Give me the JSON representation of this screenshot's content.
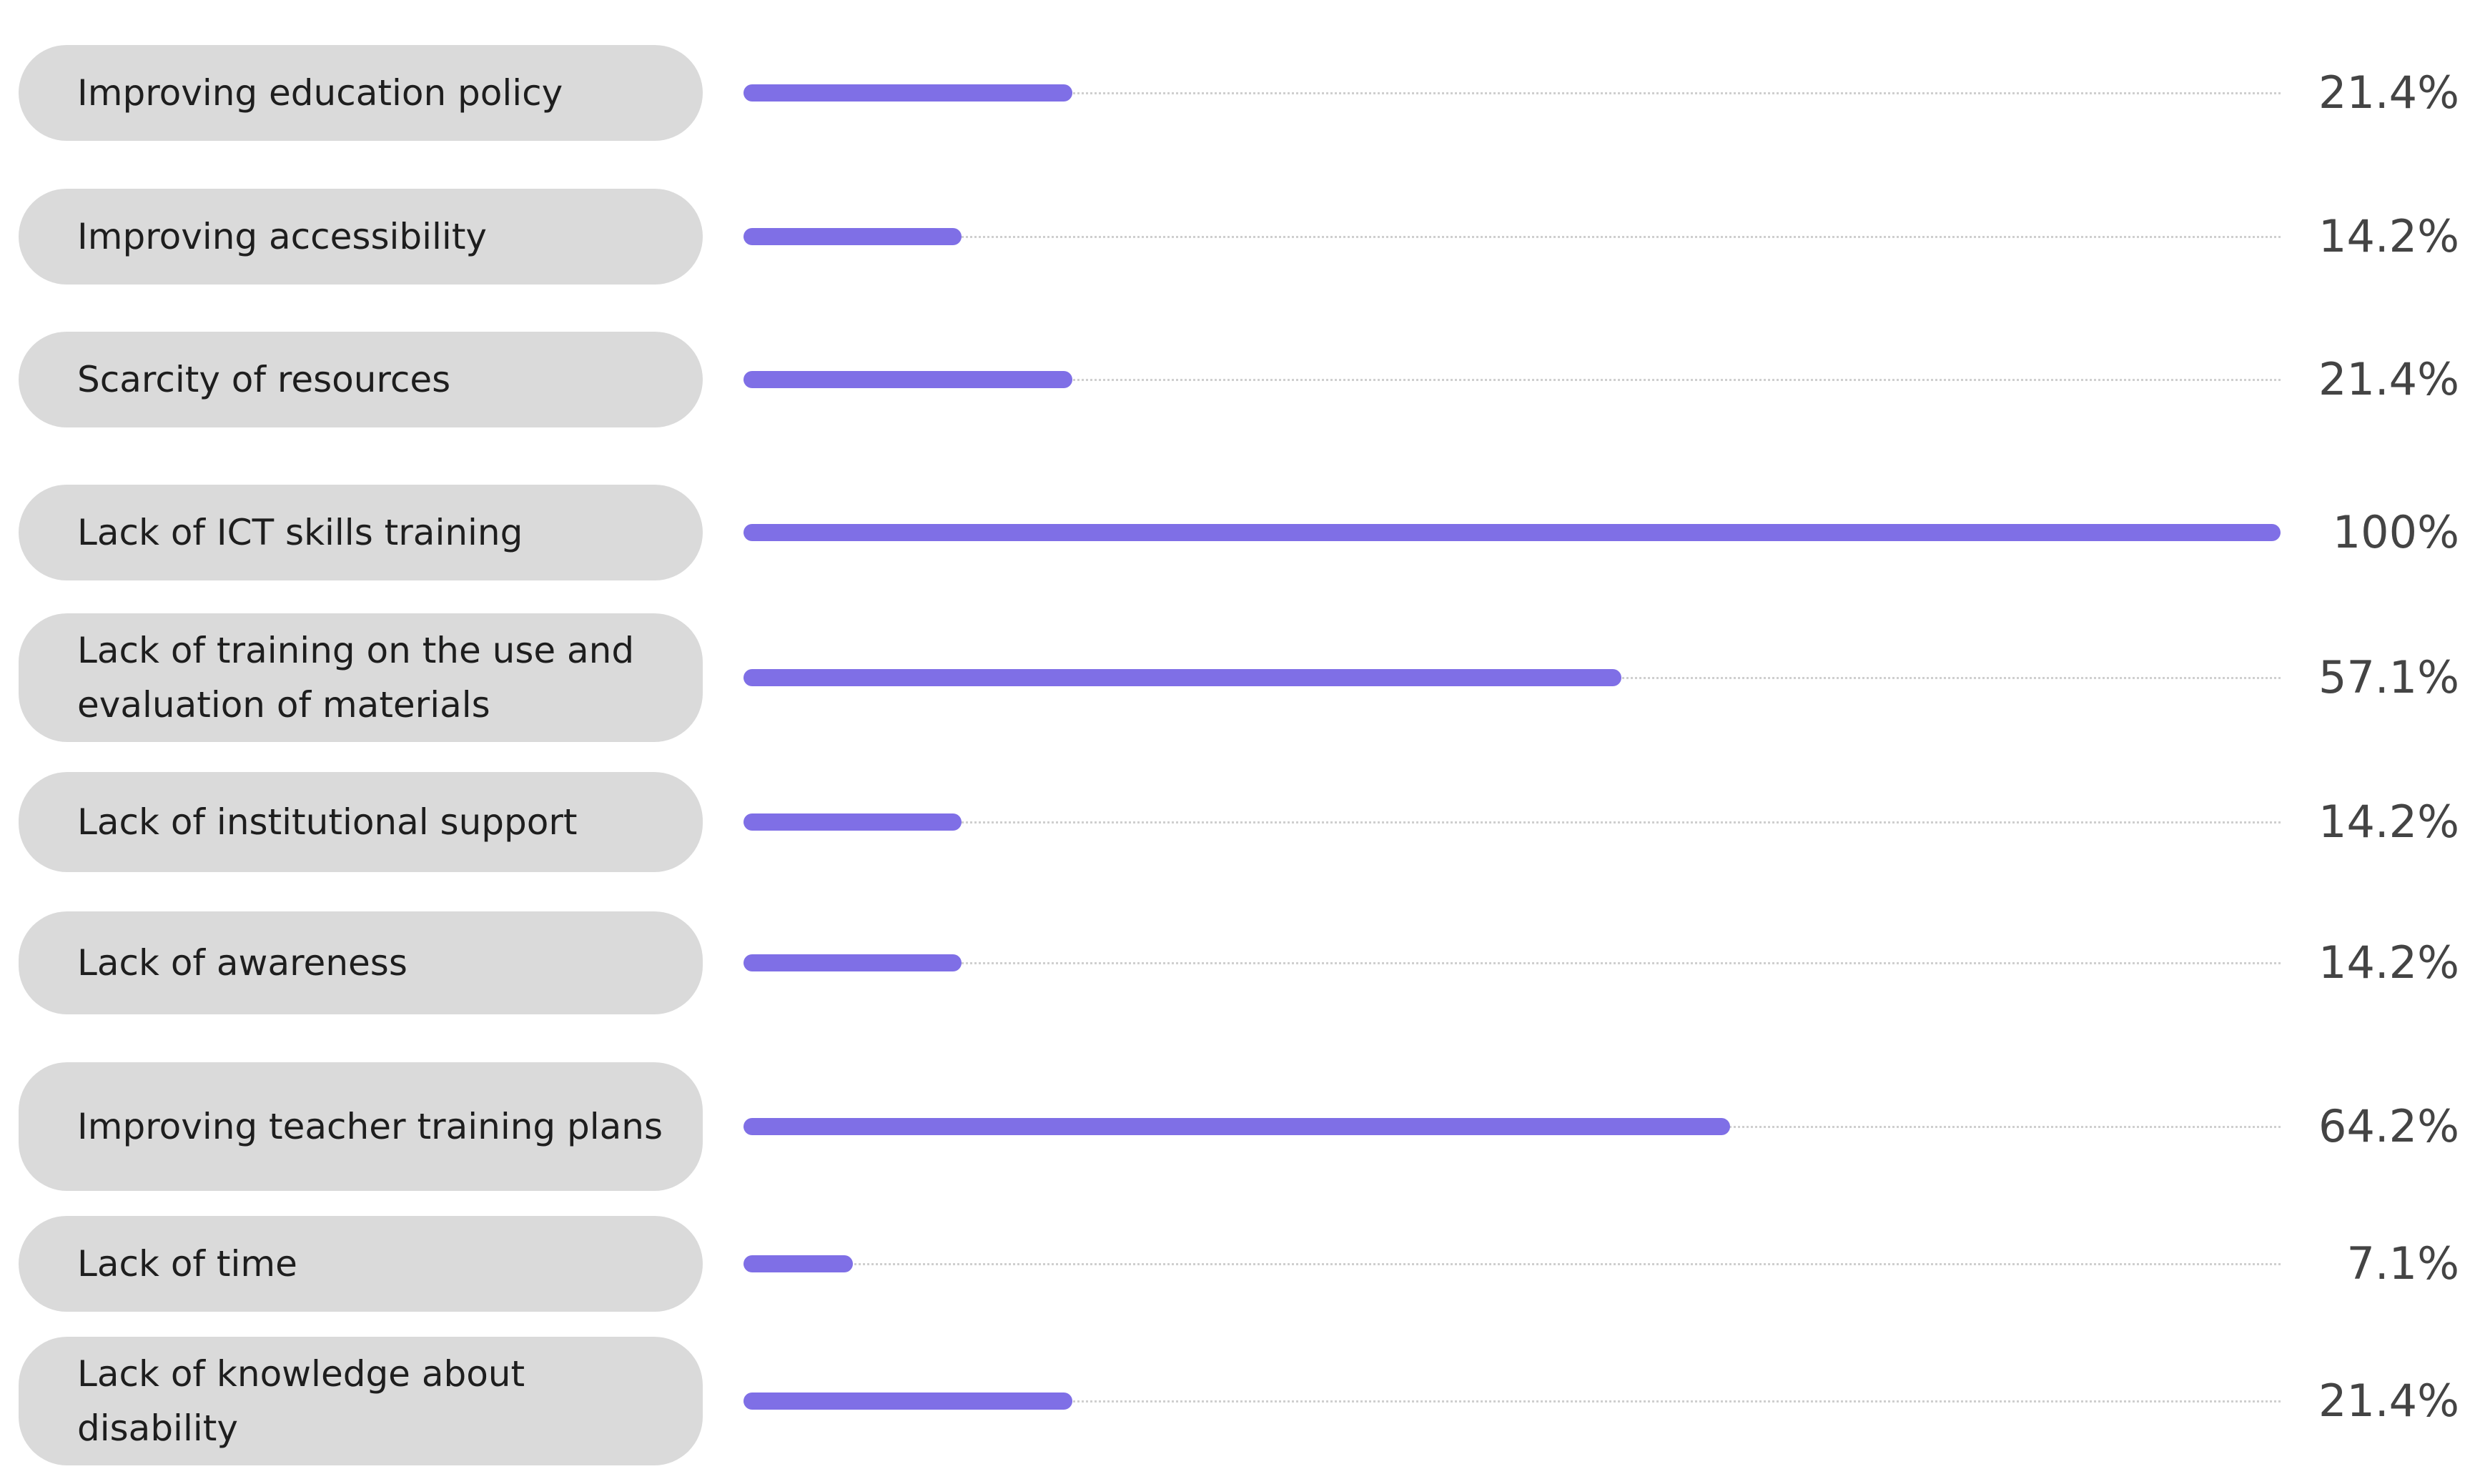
{
  "chart_data": {
    "type": "bar",
    "orientation": "horizontal",
    "categories": [
      "Improving education policy",
      "Improving accessibility",
      "Scarcity of resources",
      "Lack of ICT skills training",
      "Lack of training on the use and evaluation of materials",
      "Lack of institutional support",
      "Lack of awareness",
      "Improving teacher training plans",
      "Lack of time",
      "Lack of knowledge about disability"
    ],
    "values": [
      21.4,
      14.2,
      21.4,
      100,
      57.1,
      14.2,
      14.2,
      64.2,
      7.1,
      21.4
    ],
    "value_labels": [
      "21.4%",
      "14.2%",
      "21.4%",
      "100%",
      "57.1%",
      "14.2%",
      "14.2%",
      "64.2%",
      "7.1%",
      "21.4%"
    ],
    "xlim": [
      0,
      100
    ],
    "bar_color": "#7f6fe6",
    "track_color": "#cfcfcf",
    "label_background": "#dadada",
    "grid": false,
    "legend": "none"
  }
}
